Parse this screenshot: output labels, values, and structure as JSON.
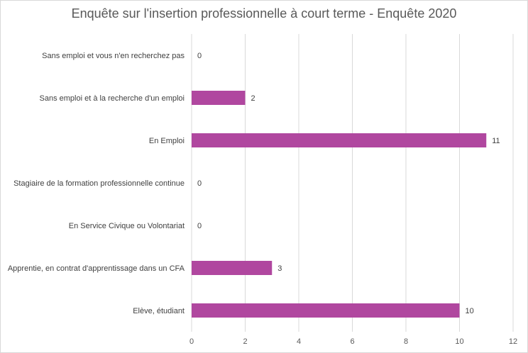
{
  "chart_data": {
    "type": "bar",
    "orientation": "horizontal",
    "title": "Enquête sur l'insertion professionnelle à court terme - Enquête 2020",
    "categories": [
      "Sans emploi et vous n'en recherchez pas",
      "Sans emploi et à la recherche d'un emploi",
      "En Emploi",
      "Stagiaire de la formation professionnelle continue",
      "En Service Civique ou Volontariat",
      "Apprentie, en contrat d'apprentissage dans un CFA",
      "Elève, étudiant"
    ],
    "values": [
      0,
      2,
      11,
      0,
      0,
      3,
      10
    ],
    "data_labels": [
      "0",
      "2",
      "11",
      "0",
      "0",
      "3",
      "10"
    ],
    "xlim": [
      0,
      12
    ],
    "xticks": [
      "0",
      "2",
      "4",
      "6",
      "8",
      "10",
      "12"
    ],
    "grid": "vertical",
    "legend": "none",
    "bar_color": "#b0479f"
  }
}
